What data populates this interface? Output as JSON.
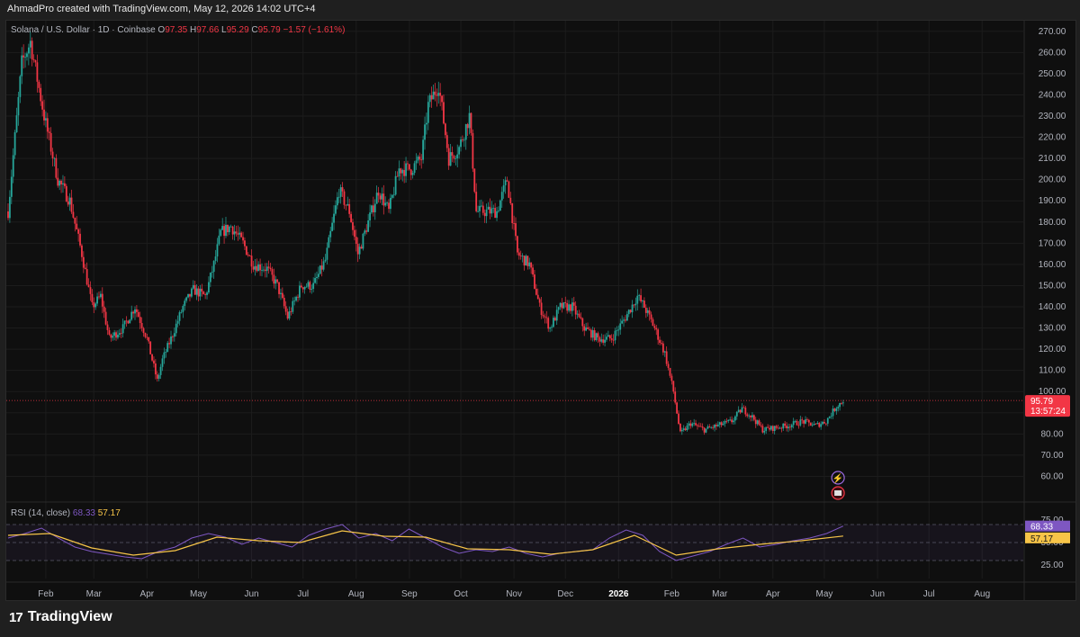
{
  "credit": "AhmadPro created with TradingView.com, May 12, 2026 14:02 UTC+4",
  "legend": {
    "symbol": "Solana / U.S. Dollar · 1D · Coinbase",
    "o_label": "O",
    "o": "97.35",
    "h_label": "H",
    "h": "97.66",
    "l_label": "L",
    "l": "95.29",
    "c_label": "C",
    "c": "95.79",
    "change": "−1.57 (−1.61%)"
  },
  "rsi_legend": {
    "label": "RSI (14, close)",
    "rsi": "68.33",
    "ma": "57.17"
  },
  "price_tag": {
    "price": "95.79",
    "countdown": "13:57:24"
  },
  "rsi_tags": {
    "rsi": "68.33",
    "ma": "57.17"
  },
  "footer": {
    "brand": "TradingView",
    "logo": "17"
  },
  "colors": {
    "up": "#26a69a",
    "down": "#f23645",
    "rsi": "#7e57c2",
    "rsi_ma": "#f7c548",
    "price_line": "#f23645",
    "background": "#0f0f0f"
  },
  "chart_data": [
    {
      "type": "candlestick",
      "title": "Solana / U.S. Dollar · 1D · Coinbase",
      "price_axis": {
        "ticks": [
          270,
          260,
          250,
          240,
          230,
          220,
          210,
          200,
          190,
          180,
          170,
          160,
          150,
          140,
          130,
          120,
          110,
          100,
          90,
          80,
          70,
          60
        ],
        "range": [
          50,
          275
        ]
      },
      "time_axis": {
        "ticks": [
          "Feb",
          "Mar",
          "Apr",
          "May",
          "Jun",
          "Jul",
          "Aug",
          "Sep",
          "Oct",
          "Nov",
          "Dec",
          "2026",
          "Feb",
          "Mar",
          "Apr",
          "May",
          "Jun",
          "Jul",
          "Aug"
        ]
      },
      "grid": true,
      "last_price": 95.79,
      "series": [
        {
          "kind": "close_path",
          "points": [
            [
              "2025-01-10",
              185
            ],
            [
              "2025-01-18",
              255
            ],
            [
              "2025-01-23",
              265
            ],
            [
              "2025-01-31",
              230
            ],
            [
              "2025-02-08",
              200
            ],
            [
              "2025-02-15",
              190
            ],
            [
              "2025-02-22",
              165
            ],
            [
              "2025-02-28",
              140
            ],
            [
              "2025-03-05",
              145
            ],
            [
              "2025-03-10",
              125
            ],
            [
              "2025-03-18",
              130
            ],
            [
              "2025-03-25",
              140
            ],
            [
              "2025-04-01",
              125
            ],
            [
              "2025-04-07",
              105
            ],
            [
              "2025-04-10",
              115
            ],
            [
              "2025-04-15",
              125
            ],
            [
              "2025-04-22",
              140
            ],
            [
              "2025-04-28",
              148
            ],
            [
              "2025-05-05",
              145
            ],
            [
              "2025-05-10",
              160
            ],
            [
              "2025-05-14",
              175
            ],
            [
              "2025-05-20",
              178
            ],
            [
              "2025-05-27",
              170
            ],
            [
              "2025-06-02",
              160
            ],
            [
              "2025-06-10",
              158
            ],
            [
              "2025-06-16",
              150
            ],
            [
              "2025-06-22",
              135
            ],
            [
              "2025-06-30",
              150
            ],
            [
              "2025-07-07",
              150
            ],
            [
              "2025-07-14",
              162
            ],
            [
              "2025-07-22",
              195
            ],
            [
              "2025-07-28",
              185
            ],
            [
              "2025-08-02",
              165
            ],
            [
              "2025-08-08",
              180
            ],
            [
              "2025-08-14",
              195
            ],
            [
              "2025-08-20",
              185
            ],
            [
              "2025-08-26",
              205
            ],
            [
              "2025-09-02",
              205
            ],
            [
              "2025-09-08",
              210
            ],
            [
              "2025-09-12",
              235
            ],
            [
              "2025-09-18",
              245
            ],
            [
              "2025-09-24",
              210
            ],
            [
              "2025-09-30",
              215
            ],
            [
              "2025-10-06",
              230
            ],
            [
              "2025-10-10",
              185
            ],
            [
              "2025-10-16",
              185
            ],
            [
              "2025-10-22",
              185
            ],
            [
              "2025-10-28",
              200
            ],
            [
              "2025-11-03",
              165
            ],
            [
              "2025-11-10",
              160
            ],
            [
              "2025-11-16",
              140
            ],
            [
              "2025-11-22",
              130
            ],
            [
              "2025-11-28",
              140
            ],
            [
              "2025-12-05",
              140
            ],
            [
              "2025-12-12",
              130
            ],
            [
              "2025-12-20",
              125
            ],
            [
              "2025-12-28",
              125
            ],
            [
              "2026-01-05",
              135
            ],
            [
              "2026-01-12",
              145
            ],
            [
              "2026-01-16",
              140
            ],
            [
              "2026-01-22",
              130
            ],
            [
              "2026-01-28",
              118
            ],
            [
              "2026-02-02",
              100
            ],
            [
              "2026-02-06",
              80
            ],
            [
              "2026-02-12",
              85
            ],
            [
              "2026-02-20",
              82
            ],
            [
              "2026-02-28",
              84
            ],
            [
              "2026-03-08",
              86
            ],
            [
              "2026-03-14",
              92
            ],
            [
              "2026-03-20",
              88
            ],
            [
              "2026-03-26",
              82
            ],
            [
              "2026-04-03",
              83
            ],
            [
              "2026-04-10",
              84
            ],
            [
              "2026-04-18",
              86
            ],
            [
              "2026-04-26",
              84
            ],
            [
              "2026-05-02",
              86
            ],
            [
              "2026-05-08",
              93
            ],
            [
              "2026-05-12",
              95.79
            ]
          ]
        }
      ]
    },
    {
      "type": "line",
      "title": "RSI (14, close)",
      "y_ticks": [
        75,
        50,
        25
      ],
      "bands": {
        "upper": 70,
        "lower": 30,
        "middle": 50
      },
      "series": [
        {
          "points": [
            [
              0.0,
              55
            ],
            [
              0.02,
              60
            ],
            [
              0.04,
              66
            ],
            [
              0.06,
              55
            ],
            [
              0.08,
              45
            ],
            [
              0.1,
              40
            ],
            [
              0.12,
              37
            ],
            [
              0.14,
              34
            ],
            [
              0.16,
              32
            ],
            [
              0.18,
              40
            ],
            [
              0.2,
              45
            ],
            [
              0.22,
              55
            ],
            [
              0.24,
              60
            ],
            [
              0.26,
              56
            ],
            [
              0.28,
              48
            ],
            [
              0.3,
              55
            ],
            [
              0.32,
              50
            ],
            [
              0.34,
              45
            ],
            [
              0.36,
              58
            ],
            [
              0.38,
              65
            ],
            [
              0.4,
              70
            ],
            [
              0.42,
              55
            ],
            [
              0.44,
              60
            ],
            [
              0.46,
              52
            ],
            [
              0.48,
              65
            ],
            [
              0.5,
              55
            ],
            [
              0.52,
              45
            ],
            [
              0.54,
              38
            ],
            [
              0.56,
              42
            ],
            [
              0.58,
              40
            ],
            [
              0.6,
              45
            ],
            [
              0.62,
              38
            ],
            [
              0.64,
              34
            ],
            [
              0.66,
              38
            ],
            [
              0.68,
              40
            ],
            [
              0.7,
              42
            ],
            [
              0.72,
              55
            ],
            [
              0.74,
              64
            ],
            [
              0.76,
              58
            ],
            [
              0.78,
              40
            ],
            [
              0.8,
              30
            ],
            [
              0.82,
              35
            ],
            [
              0.84,
              40
            ],
            [
              0.86,
              48
            ],
            [
              0.88,
              55
            ],
            [
              0.9,
              45
            ],
            [
              0.92,
              48
            ],
            [
              0.94,
              52
            ],
            [
              0.96,
              55
            ],
            [
              0.98,
              60
            ],
            [
              1.0,
              68.33
            ]
          ]
        },
        {
          "points": [
            [
              0.0,
              58
            ],
            [
              0.05,
              60
            ],
            [
              0.1,
              44
            ],
            [
              0.15,
              36
            ],
            [
              0.2,
              41
            ],
            [
              0.25,
              56
            ],
            [
              0.3,
              52
            ],
            [
              0.35,
              50
            ],
            [
              0.4,
              63
            ],
            [
              0.45,
              57
            ],
            [
              0.5,
              56
            ],
            [
              0.55,
              43
            ],
            [
              0.6,
              42
            ],
            [
              0.65,
              37
            ],
            [
              0.7,
              42
            ],
            [
              0.75,
              58
            ],
            [
              0.8,
              36
            ],
            [
              0.85,
              43
            ],
            [
              0.9,
              48
            ],
            [
              0.95,
              52
            ],
            [
              1.0,
              57.17
            ]
          ]
        }
      ]
    }
  ]
}
